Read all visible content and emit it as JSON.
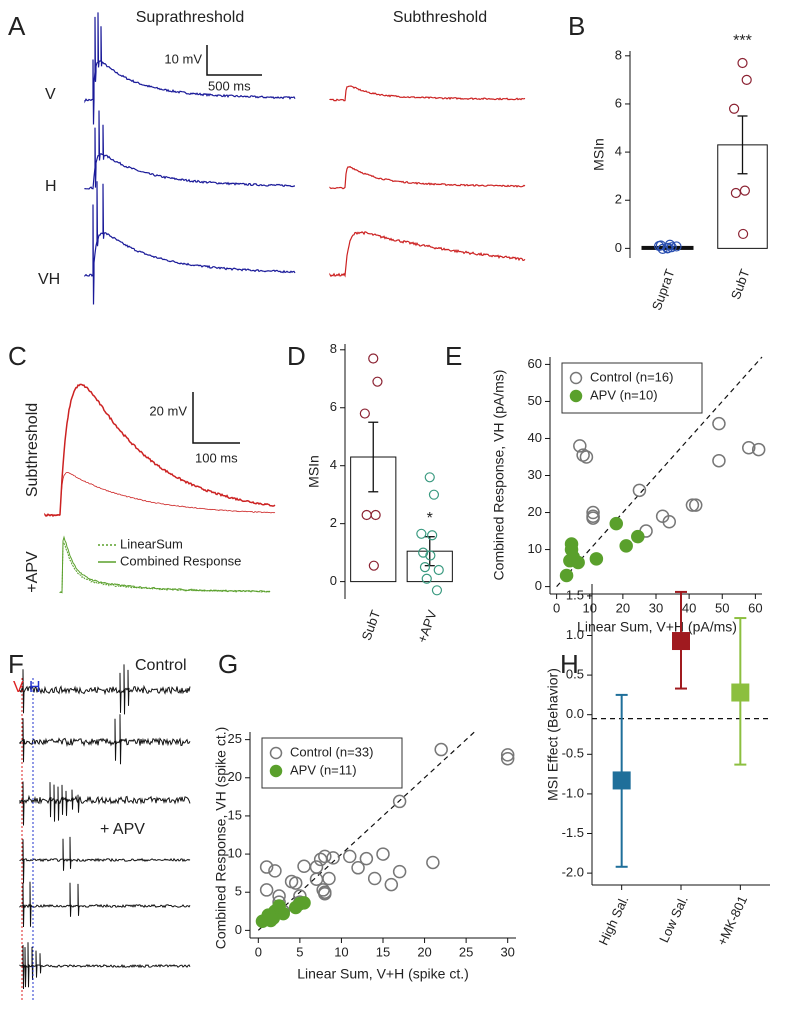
{
  "figure_text": {
    "panel_labels": [
      "A",
      "B",
      "C",
      "D",
      "E",
      "F",
      "G",
      "H"
    ],
    "a_titles": [
      "Suprathreshold",
      "Subthreshold"
    ],
    "a_rows": [
      "V",
      "H",
      "VH"
    ],
    "a_scale": [
      "10 mV",
      "500 ms"
    ],
    "c_rows": [
      "Subthreshold",
      "+APV"
    ],
    "c_scale": [
      "20 mV",
      "100 ms"
    ],
    "c_legend": [
      "LinearSum",
      "Combined Response"
    ],
    "f_title": "Control",
    "f_markers": [
      "V",
      "H"
    ],
    "f_condition": "+ APV"
  },
  "chart_data": [
    {
      "type": "bar",
      "y_label": "MSIn",
      "categories": [
        "SupraT",
        "SubT"
      ],
      "values": [
        0.05,
        4.3
      ],
      "errors": [
        0.04,
        1.2
      ],
      "points": [
        [
          0.0,
          0.05,
          0.1,
          0.15,
          0.12,
          0.02,
          -0.02,
          0.08
        ],
        [
          7.7,
          7.0,
          5.8,
          2.4,
          2.3,
          0.6
        ]
      ],
      "point_colors": [
        "#2a4fb0",
        "#8b2232"
      ],
      "ylim": [
        -0.4,
        8.2
      ],
      "yticks": [
        0,
        2,
        4,
        6,
        8
      ],
      "annotations": [
        {
          "category": "SubT",
          "text": "***"
        }
      ]
    },
    {
      "type": "bar",
      "y_label": "MSIn",
      "categories": [
        "SubT",
        "+APV"
      ],
      "values": [
        4.3,
        1.05
      ],
      "errors": [
        1.2,
        0.5
      ],
      "points": [
        [
          7.7,
          6.9,
          5.8,
          2.3,
          2.3,
          0.55
        ],
        [
          3.6,
          3.0,
          1.65,
          1.6,
          1.0,
          0.9,
          0.5,
          0.4,
          0.1,
          -0.3
        ]
      ],
      "point_colors": [
        "#8b2232",
        "#3a9a80"
      ],
      "ylim": [
        -0.6,
        8.2
      ],
      "yticks": [
        0,
        2,
        4,
        6,
        8
      ],
      "annotations": [
        {
          "category": "+APV",
          "text": "*"
        }
      ]
    },
    {
      "type": "scatter",
      "x_label": "Linear Sum, V+H (pA/ms)",
      "y_label": "Combined Response, VH (pA/ms)",
      "xlim": [
        -2,
        62
      ],
      "ylim": [
        -2,
        62
      ],
      "xticks": [
        0,
        10,
        20,
        30,
        40,
        50,
        60
      ],
      "yticks": [
        0,
        10,
        20,
        30,
        40,
        50,
        60
      ],
      "identity_line": true,
      "legend": "upper left",
      "series": [
        {
          "name": "Control (n=16)",
          "color": "#777777",
          "marker": "open",
          "x": [
            7,
            8,
            9,
            11,
            11,
            11,
            25,
            27,
            32,
            34,
            41,
            42,
            49,
            49,
            58,
            61
          ],
          "y": [
            38,
            35.5,
            35,
            20,
            19,
            18.5,
            26,
            15,
            19,
            17.5,
            22,
            22,
            44,
            34,
            37.5,
            37
          ]
        },
        {
          "name": "APV (n=10)",
          "color": "#5aa02c",
          "marker": "filled",
          "x": [
            3,
            4,
            4.5,
            4.5,
            5,
            6.5,
            12,
            18,
            21,
            24.5
          ],
          "y": [
            3,
            7,
            11.5,
            10,
            8,
            6.5,
            7.5,
            17,
            11,
            13.5
          ]
        }
      ]
    },
    {
      "type": "scatter",
      "x_label": "Linear Sum, V+H (spike ct.)",
      "y_label": "Combined Response, VH (spike ct.)",
      "xlim": [
        -1,
        31
      ],
      "ylim": [
        -1,
        26
      ],
      "xticks": [
        0,
        5,
        10,
        15,
        20,
        25,
        30
      ],
      "yticks": [
        0,
        5,
        10,
        15,
        20,
        25
      ],
      "identity_line": true,
      "legend": "upper left",
      "series": [
        {
          "name": "Control (n=33)",
          "color": "#777777",
          "marker": "open",
          "x": [
            1,
            1,
            2,
            2.5,
            2.5,
            3,
            4,
            5,
            5,
            5.5,
            7,
            7.5,
            7.8,
            8,
            8,
            8,
            8.5,
            9,
            11,
            12,
            13,
            14,
            15,
            16,
            17,
            17,
            21,
            22,
            30,
            30,
            7,
            4.5,
            1.5
          ],
          "y": [
            5.3,
            8.3,
            7.8,
            4.5,
            3.7,
            2.5,
            6.4,
            4.5,
            3.7,
            8.4,
            6.7,
            9.3,
            5.3,
            4.8,
            5,
            9.7,
            6.8,
            9.5,
            9.7,
            8.2,
            9.4,
            6.8,
            10,
            6,
            16.9,
            7.7,
            8.9,
            23.7,
            23,
            22.5,
            8.3,
            6.2,
            1.8
          ]
        },
        {
          "name": "APV (n=11)",
          "color": "#5aa02c",
          "marker": "filled",
          "x": [
            0.5,
            1,
            1.2,
            1.5,
            2,
            2.5,
            3,
            4.5,
            5,
            5.5,
            1.8
          ],
          "y": [
            1.2,
            1.5,
            2,
            1.3,
            2.5,
            3.2,
            2.2,
            3,
            3.5,
            3.6,
            1.6
          ]
        }
      ]
    },
    {
      "type": "point",
      "y_label": "MSI Effect (Behavior)",
      "categories": [
        "High Sal.",
        "Low Sal.",
        "+MK-801"
      ],
      "values": [
        -0.83,
        0.93,
        0.28
      ],
      "lower": [
        -1.92,
        0.33,
        -0.63
      ],
      "upper": [
        0.25,
        1.55,
        1.22
      ],
      "colors": [
        "#1f6f9a",
        "#a01a1f",
        "#8cbf3f"
      ],
      "reference_line": -0.05,
      "ylim": [
        -2.15,
        1.65
      ],
      "yticks": [
        {
          "value": -2,
          "label": "-2.0"
        },
        -1.5,
        {
          "value": -1,
          "label": "-1.0"
        },
        -0.5,
        {
          "value": 0,
          "label": "0.0"
        },
        0.5,
        {
          "value": 1,
          "label": "1.0"
        },
        1.5
      ]
    }
  ]
}
